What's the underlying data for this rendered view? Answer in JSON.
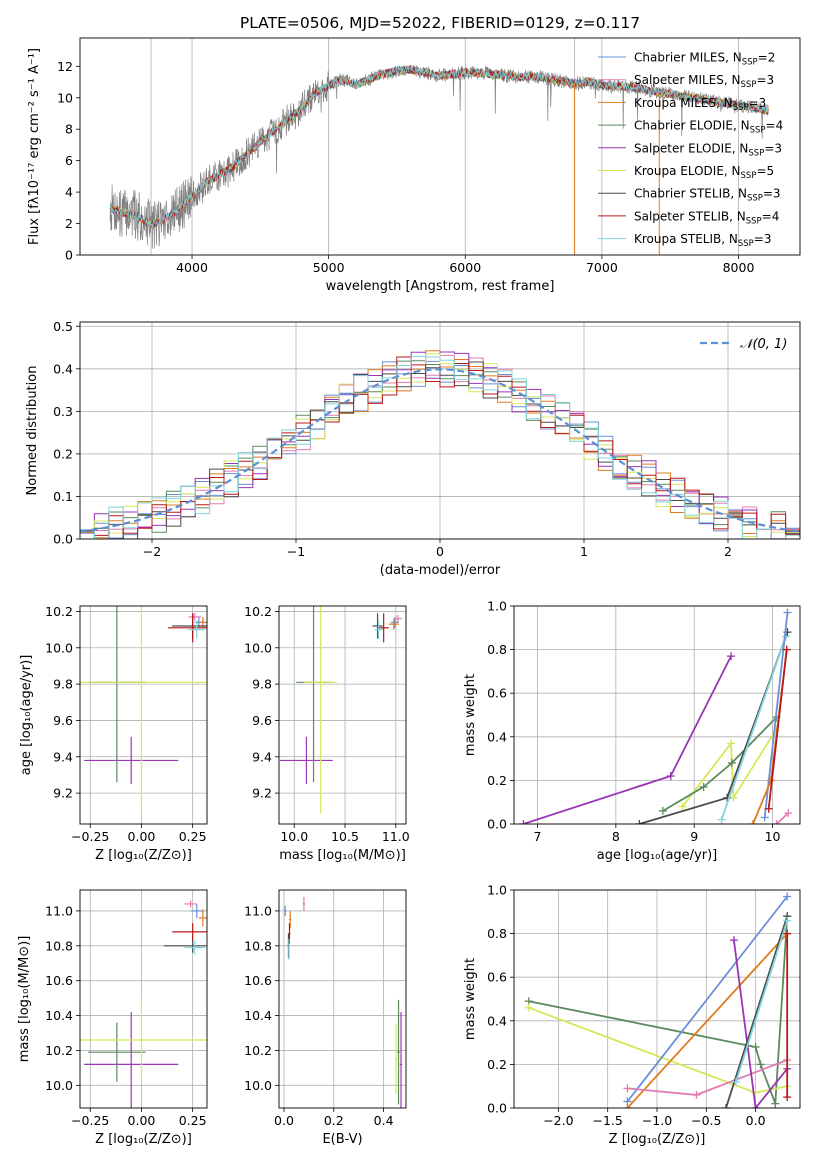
{
  "figure_title": "PLATE=0506, MJD=52022, FIBERID=0129, z=0.117",
  "colors": {
    "Chabrier MILES": "#6a8fd8",
    "Salpeter MILES": "#e37bb0",
    "Kroupa MILES": "#e07b20",
    "Chabrier ELODIE": "#5c8a5c",
    "Salpeter ELODIE": "#9a35b5",
    "Kroupa ELODIE": "#d4e85a",
    "Chabrier STELIB": "#4a4a4a",
    "Salpeter STELIB": "#b81818",
    "Kroupa STELIB": "#80d4dc",
    "data": "#808080",
    "normal": "#5b8fd6"
  },
  "chart_data": [
    {
      "id": "spectrum",
      "type": "line",
      "xlabel": "wavelength [Angstrom, rest frame]",
      "ylabel": "Flux [fλ10⁻¹⁷ erg cm⁻² s⁻¹ A⁻¹]",
      "xlim": [
        3180,
        8450
      ],
      "ylim": [
        0,
        13.8
      ],
      "xticks": [
        4000,
        5000,
        6000,
        7000,
        8000
      ],
      "yticks": [
        0,
        2,
        4,
        6,
        8,
        10,
        12
      ],
      "grid": "x",
      "vlines": [
        3700,
        6800
      ],
      "data_range": [
        3400,
        8220
      ],
      "legend_placement": "upper right",
      "continuum": [
        [
          3400,
          3.0
        ],
        [
          3500,
          2.7
        ],
        [
          3600,
          2.5
        ],
        [
          3700,
          1.9
        ],
        [
          3800,
          2.3
        ],
        [
          3900,
          2.9
        ],
        [
          4000,
          3.7
        ],
        [
          4100,
          4.6
        ],
        [
          4200,
          5.1
        ],
        [
          4300,
          5.6
        ],
        [
          4400,
          6.4
        ],
        [
          4500,
          7.2
        ],
        [
          4600,
          7.9
        ],
        [
          4700,
          8.6
        ],
        [
          4800,
          9.3
        ],
        [
          4900,
          10.3
        ],
        [
          5000,
          10.8
        ],
        [
          5100,
          11.2
        ],
        [
          5200,
          10.8
        ],
        [
          5300,
          11.2
        ],
        [
          5400,
          11.5
        ],
        [
          5500,
          11.7
        ],
        [
          5600,
          11.8
        ],
        [
          5700,
          11.6
        ],
        [
          5800,
          11.4
        ],
        [
          5900,
          11.5
        ],
        [
          6000,
          11.6
        ],
        [
          6100,
          11.6
        ],
        [
          6200,
          11.5
        ],
        [
          6300,
          11.4
        ],
        [
          6400,
          11.3
        ],
        [
          6500,
          11.4
        ],
        [
          6600,
          11.2
        ],
        [
          6700,
          11.1
        ],
        [
          6800,
          10.9
        ],
        [
          6900,
          11.0
        ],
        [
          7000,
          10.8
        ],
        [
          7200,
          10.7
        ],
        [
          7400,
          10.4
        ],
        [
          7600,
          10.1
        ],
        [
          7800,
          9.8
        ],
        [
          8000,
          9.5
        ],
        [
          8220,
          9.2
        ]
      ],
      "series": [
        {
          "label": "Chabrier MILES, N",
          "sub": "SSP",
          "n": "=2",
          "model": "Chabrier MILES"
        },
        {
          "label": "Salpeter MILES, N",
          "sub": "SSP",
          "n": "=3",
          "model": "Salpeter MILES"
        },
        {
          "label": "Kroupa MILES, N",
          "sub": "SSP",
          "n": "=3",
          "model": "Kroupa MILES"
        },
        {
          "label": "Chabrier ELODIE, N",
          "sub": "SSP",
          "n": "=4",
          "model": "Chabrier ELODIE"
        },
        {
          "label": "Salpeter ELODIE, N",
          "sub": "SSP",
          "n": "=3",
          "model": "Salpeter ELODIE"
        },
        {
          "label": "Kroupa ELODIE, N",
          "sub": "SSP",
          "n": "=5",
          "model": "Kroupa ELODIE"
        },
        {
          "label": "Chabrier STELIB, N",
          "sub": "SSP",
          "n": "=3",
          "model": "Chabrier STELIB"
        },
        {
          "label": "Salpeter STELIB, N",
          "sub": "SSP",
          "n": "=4",
          "model": "Salpeter STELIB"
        },
        {
          "label": "Kroupa STELIB, N",
          "sub": "SSP",
          "n": "=3",
          "model": "Kroupa STELIB"
        }
      ]
    },
    {
      "id": "residuals",
      "type": "line",
      "xlabel": "(data-model)/error",
      "ylabel": "Normed distribution",
      "xlim": [
        -2.5,
        2.5
      ],
      "ylim": [
        0,
        0.51
      ],
      "xticks": [
        -2,
        -1,
        0,
        1,
        2
      ],
      "xticklabels": [
        "−2",
        "−1",
        "0",
        "1",
        "2"
      ],
      "yticks": [
        0.0,
        0.1,
        0.2,
        0.3,
        0.4,
        0.5
      ],
      "yticklabels": [
        "0.0",
        "0.1",
        "0.2",
        "0.3",
        "0.4",
        "0.5"
      ],
      "grid": "both",
      "legend_placement": "upper right",
      "legend_label": "𝒩(0, 1)",
      "bin_width": 0.1,
      "bin_start": -2.5
    },
    {
      "id": "age_vs_Z",
      "type": "scatter",
      "xlabel": "Z [log₁₀(Z/Z⊙)]",
      "ylabel": "age  [log₁₀(age/yr)]",
      "xlim": [
        -0.3,
        0.32
      ],
      "ylim": [
        9.03,
        10.23
      ],
      "xticks": [
        -0.25,
        0.0,
        0.25
      ],
      "xticklabels": [
        "−0.25",
        "0.00",
        "0.25"
      ],
      "yticks": [
        9.2,
        9.4,
        9.6,
        9.8,
        10.0,
        10.2
      ],
      "yticklabels": [
        "9.2",
        "9.4",
        "9.6",
        "9.8",
        "10.0",
        "10.2"
      ],
      "grid": "both",
      "points": [
        {
          "model": "Salpeter ELODIE",
          "x": -0.05,
          "y": 9.38,
          "xerr": 0.23,
          "yerr": 0.13
        },
        {
          "model": "Chabrier ELODIE",
          "x": -0.12,
          "y": 9.81,
          "xerr": 0.14,
          "yerr": 0.55
        },
        {
          "model": "Kroupa ELODIE",
          "x": 0.0,
          "y": 9.81,
          "xerr": 0.32,
          "yerr": 0.72
        },
        {
          "model": "Chabrier MILES",
          "x": 0.28,
          "y": 10.14,
          "xerr": 0.02,
          "yerr": 0.03
        },
        {
          "model": "Salpeter MILES",
          "x": 0.26,
          "y": 10.17,
          "xerr": 0.03,
          "yerr": 0.02
        },
        {
          "model": "Kroupa MILES",
          "x": 0.3,
          "y": 10.14,
          "xerr": 0.02,
          "yerr": 0.03
        },
        {
          "model": "Chabrier STELIB",
          "x": 0.25,
          "y": 10.12,
          "xerr": 0.1,
          "yerr": 0.07
        },
        {
          "model": "Salpeter STELIB",
          "x": 0.25,
          "y": 10.11,
          "xerr": 0.12,
          "yerr": 0.08
        },
        {
          "model": "Kroupa STELIB",
          "x": 0.27,
          "y": 10.1,
          "xerr": 0.04,
          "yerr": 0.05
        }
      ]
    },
    {
      "id": "age_vs_mass",
      "type": "scatter",
      "xlabel": "mass [log₁₀(M/M⊙)]",
      "ylabel": "",
      "xlim": [
        9.85,
        11.1
      ],
      "ylim": [
        9.03,
        10.23
      ],
      "xticks": [
        10.0,
        10.5,
        11.0
      ],
      "xticklabels": [
        "10.0",
        "10.5",
        "11.0"
      ],
      "yticks": [
        9.2,
        9.4,
        9.6,
        9.8,
        10.0,
        10.2
      ],
      "yticklabels": [
        "9.2",
        "9.4",
        "9.6",
        "9.8",
        "10.0",
        "10.2"
      ],
      "grid": "both",
      "points": [
        {
          "model": "Salpeter ELODIE",
          "x": 10.12,
          "y": 9.38,
          "xerr": 0.26,
          "yerr": 0.13
        },
        {
          "model": "Chabrier ELODIE",
          "x": 10.19,
          "y": 9.81,
          "xerr": 0.17,
          "yerr": 0.55
        },
        {
          "model": "Kroupa ELODIE",
          "x": 10.26,
          "y": 9.81,
          "xerr": 0.16,
          "yerr": 0.72
        },
        {
          "model": "Chabrier MILES",
          "x": 10.99,
          "y": 10.14,
          "xerr": 0.04,
          "yerr": 0.03
        },
        {
          "model": "Salpeter MILES",
          "x": 11.02,
          "y": 10.16,
          "xerr": 0.04,
          "yerr": 0.02
        },
        {
          "model": "Kroupa MILES",
          "x": 10.98,
          "y": 10.13,
          "xerr": 0.05,
          "yerr": 0.03
        },
        {
          "model": "Chabrier STELIB",
          "x": 10.82,
          "y": 10.12,
          "xerr": 0.05,
          "yerr": 0.07
        },
        {
          "model": "Salpeter STELIB",
          "x": 10.88,
          "y": 10.11,
          "xerr": 0.05,
          "yerr": 0.08
        },
        {
          "model": "Kroupa STELIB",
          "x": 10.83,
          "y": 10.1,
          "xerr": 0.04,
          "yerr": 0.05
        }
      ]
    },
    {
      "id": "weight_vs_age",
      "type": "line",
      "xlabel": "age  [log₁₀(age/yr)]",
      "ylabel": "mass weight",
      "xlim": [
        6.7,
        10.35
      ],
      "ylim": [
        0,
        1.0
      ],
      "xticks": [
        7,
        8,
        9,
        10
      ],
      "xticklabels": [
        "7",
        "8",
        "9",
        "10"
      ],
      "yticks": [
        0.0,
        0.2,
        0.4,
        0.6,
        0.8,
        1.0
      ],
      "yticklabels": [
        "0.0",
        "0.2",
        "0.4",
        "0.6",
        "0.8",
        "1.0"
      ],
      "grid": "both",
      "series": [
        {
          "model": "Salpeter ELODIE",
          "points": [
            [
              6.82,
              0.0
            ],
            [
              8.7,
              0.22
            ],
            [
              9.47,
              0.77
            ]
          ]
        },
        {
          "model": "Kroupa ELODIE",
          "points": [
            [
              8.85,
              0.08
            ],
            [
              9.47,
              0.37
            ],
            [
              9.5,
              0.12
            ],
            [
              10.04,
              0.43
            ]
          ]
        },
        {
          "model": "Chabrier ELODIE",
          "points": [
            [
              8.6,
              0.06
            ],
            [
              9.12,
              0.17
            ],
            [
              9.48,
              0.28
            ],
            [
              10.05,
              0.49
            ]
          ]
        },
        {
          "model": "Chabrier STELIB",
          "points": [
            [
              8.3,
              0.0
            ],
            [
              9.42,
              0.12
            ],
            [
              10.19,
              0.88
            ]
          ]
        },
        {
          "model": "Kroupa STELIB",
          "points": [
            [
              9.35,
              0.02
            ],
            [
              10.17,
              0.86
            ]
          ]
        },
        {
          "model": "Chabrier MILES",
          "points": [
            [
              9.9,
              0.03
            ],
            [
              10.19,
              0.97
            ]
          ]
        },
        {
          "model": "Kroupa MILES",
          "points": [
            [
              9.75,
              0.0
            ],
            [
              9.98,
              0.2
            ],
            [
              10.18,
              0.8
            ]
          ]
        },
        {
          "model": "Salpeter STELIB",
          "points": [
            [
              9.95,
              0.07
            ],
            [
              10.18,
              0.8
            ]
          ]
        },
        {
          "model": "Salpeter MILES",
          "points": [
            [
              10.05,
              0.0
            ],
            [
              10.2,
              0.05
            ]
          ]
        }
      ]
    },
    {
      "id": "mass_vs_Z",
      "type": "scatter",
      "xlabel": "Z [log₁₀(Z/Z⊙)]",
      "ylabel": "mass [log₁₀(M/M⊙)]",
      "xlim": [
        -0.3,
        0.32
      ],
      "ylim": [
        9.87,
        11.12
      ],
      "xticks": [
        -0.25,
        0.0,
        0.25
      ],
      "xticklabels": [
        "−0.25",
        "0.00",
        "0.25"
      ],
      "yticks": [
        10.0,
        10.2,
        10.4,
        10.6,
        10.8,
        11.0
      ],
      "yticklabels": [
        "10.0",
        "10.2",
        "10.4",
        "10.6",
        "10.8",
        "11.0"
      ],
      "grid": "both",
      "points": [
        {
          "model": "Salpeter ELODIE",
          "x": -0.05,
          "y": 10.12,
          "xerr": 0.23,
          "yerr": 0.3
        },
        {
          "model": "Chabrier ELODIE",
          "x": -0.12,
          "y": 10.19,
          "xerr": 0.14,
          "yerr": 0.17
        },
        {
          "model": "Kroupa ELODIE",
          "x": 0.0,
          "y": 10.26,
          "xerr": 0.32,
          "yerr": 0.25
        },
        {
          "model": "Chabrier MILES",
          "x": 0.27,
          "y": 11.0,
          "xerr": 0.03,
          "yerr": 0.04
        },
        {
          "model": "Salpeter MILES",
          "x": 0.24,
          "y": 11.04,
          "xerr": 0.03,
          "yerr": 0.02
        },
        {
          "model": "Kroupa MILES",
          "x": 0.3,
          "y": 10.96,
          "xerr": 0.02,
          "yerr": 0.05
        },
        {
          "model": "Chabrier STELIB",
          "x": 0.25,
          "y": 10.8,
          "xerr": 0.14,
          "yerr": 0.04
        },
        {
          "model": "Salpeter STELIB",
          "x": 0.25,
          "y": 10.88,
          "xerr": 0.1,
          "yerr": 0.05
        },
        {
          "model": "Kroupa STELIB",
          "x": 0.26,
          "y": 10.79,
          "xerr": 0.05,
          "yerr": 0.04
        }
      ]
    },
    {
      "id": "mass_vs_EBV",
      "type": "scatter",
      "xlabel": "E(B-V)",
      "ylabel": "",
      "xlim": [
        -0.02,
        0.49
      ],
      "ylim": [
        9.87,
        11.12
      ],
      "xticks": [
        0.0,
        0.2,
        0.4
      ],
      "xticklabels": [
        "0.0",
        "0.2",
        "0.4"
      ],
      "yticks": [
        10.0,
        10.2,
        10.4,
        10.6,
        10.8,
        11.0
      ],
      "yticklabels": [
        "10.0",
        "10.2",
        "10.4",
        "10.6",
        "10.8",
        "11.0"
      ],
      "grid": "both",
      "points": [
        {
          "model": "Chabrier MILES",
          "x": 0.005,
          "y": 11.0,
          "xerr": 0.005,
          "yerr": 0.03
        },
        {
          "model": "Salpeter MILES",
          "x": 0.08,
          "y": 11.04,
          "xerr": 0.005,
          "yerr": 0.04
        },
        {
          "model": "Kroupa MILES",
          "x": 0.025,
          "y": 10.95,
          "xerr": 0.005,
          "yerr": 0.05
        },
        {
          "model": "Chabrier STELIB",
          "x": 0.018,
          "y": 10.8,
          "xerr": 0.004,
          "yerr": 0.07
        },
        {
          "model": "Salpeter STELIB",
          "x": 0.022,
          "y": 10.87,
          "xerr": 0.004,
          "yerr": 0.06
        },
        {
          "model": "Kroupa STELIB",
          "x": 0.02,
          "y": 10.78,
          "xerr": 0.004,
          "yerr": 0.06
        },
        {
          "model": "Kroupa ELODIE",
          "x": 0.45,
          "y": 10.15,
          "xerr": 0.005,
          "yerr": 0.2
        },
        {
          "model": "Chabrier ELODIE",
          "x": 0.46,
          "y": 10.19,
          "xerr": 0.005,
          "yerr": 0.3
        },
        {
          "model": "Salpeter ELODIE",
          "x": 0.47,
          "y": 10.12,
          "xerr": 0.005,
          "yerr": 0.3
        }
      ]
    },
    {
      "id": "weight_vs_Z",
      "type": "line",
      "xlabel": "Z [log₁₀(Z/Z⊙)]",
      "ylabel": "mass weight",
      "xlim": [
        -2.45,
        0.45
      ],
      "ylim": [
        0,
        1.0
      ],
      "xticks": [
        -2.0,
        -1.5,
        -1.0,
        -0.5,
        0.0
      ],
      "xticklabels": [
        "−2.0",
        "−1.5",
        "−1.0",
        "−0.5",
        "0.0"
      ],
      "yticks": [
        0.0,
        0.2,
        0.4,
        0.6,
        0.8,
        1.0
      ],
      "yticklabels": [
        "0.0",
        "0.2",
        "0.4",
        "0.6",
        "0.8",
        "1.0"
      ],
      "grid": "both",
      "series": [
        {
          "model": "Chabrier ELODIE",
          "points": [
            [
              -2.3,
              0.49
            ],
            [
              0.0,
              0.28
            ],
            [
              0.05,
              0.2
            ],
            [
              0.2,
              0.02
            ],
            [
              0.32,
              0.88
            ]
          ]
        },
        {
          "model": "Kroupa ELODIE",
          "points": [
            [
              -2.3,
              0.46
            ],
            [
              0.0,
              0.07
            ],
            [
              0.32,
              0.1
            ]
          ]
        },
        {
          "model": "Chabrier MILES",
          "points": [
            [
              -1.3,
              0.03
            ],
            [
              0.32,
              0.97
            ]
          ]
        },
        {
          "model": "Kroupa MILES",
          "points": [
            [
              -1.3,
              0.0
            ],
            [
              0.32,
              0.8
            ]
          ]
        },
        {
          "model": "Salpeter MILES",
          "points": [
            [
              -1.3,
              0.09
            ],
            [
              -0.6,
              0.06
            ],
            [
              0.32,
              0.22
            ]
          ]
        },
        {
          "model": "Salpeter ELODIE",
          "points": [
            [
              -0.22,
              0.77
            ],
            [
              0.0,
              0.0
            ],
            [
              0.32,
              0.18
            ]
          ]
        },
        {
          "model": "Chabrier STELIB",
          "points": [
            [
              -0.3,
              0.0
            ],
            [
              0.32,
              0.88
            ]
          ]
        },
        {
          "model": "Kroupa STELIB",
          "points": [
            [
              -0.2,
              0.12
            ],
            [
              0.32,
              0.86
            ]
          ]
        },
        {
          "model": "Salpeter STELIB",
          "points": [
            [
              0.32,
              0.05
            ],
            [
              0.32,
              0.8
            ]
          ]
        }
      ]
    }
  ]
}
